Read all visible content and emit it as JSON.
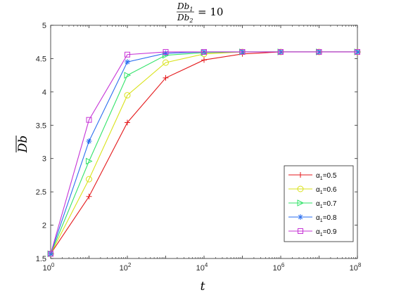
{
  "chart_data": {
    "type": "line",
    "title": {
      "numerator": "Db",
      "numerator_sub": "1",
      "denominator": "Db",
      "denominator_sub": "2",
      "equals": "= 10"
    },
    "xlabel": "t",
    "ylabel": "Db",
    "xscale": "log",
    "xlim": [
      1,
      100000000
    ],
    "ylim": [
      1.5,
      5
    ],
    "x": [
      1,
      10,
      100,
      1000,
      10000,
      100000,
      1000000,
      10000000,
      100000000
    ],
    "x_ticks": [
      {
        "base": "10",
        "exp": "0",
        "value": 1
      },
      {
        "base": "10",
        "exp": "2",
        "value": 100
      },
      {
        "base": "10",
        "exp": "4",
        "value": 10000
      },
      {
        "base": "10",
        "exp": "6",
        "value": 1000000
      },
      {
        "base": "10",
        "exp": "8",
        "value": 100000000
      }
    ],
    "y_ticks": [
      "1.5",
      "2",
      "2.5",
      "3",
      "3.5",
      "4",
      "4.5",
      "5"
    ],
    "grid": false,
    "legend_position": "bottom-right",
    "series": [
      {
        "name": "α",
        "sub": "1",
        "suffix": "=0.5",
        "color": "#e41a1c",
        "marker": "plus",
        "values": [
          1.57,
          2.43,
          3.54,
          4.21,
          4.48,
          4.57,
          4.6,
          4.6,
          4.6
        ]
      },
      {
        "name": "α",
        "sub": "1",
        "suffix": "=0.6",
        "color": "#d9e21a",
        "marker": "circle",
        "values": [
          1.57,
          2.69,
          3.95,
          4.44,
          4.57,
          4.6,
          4.6,
          4.6,
          4.6
        ]
      },
      {
        "name": "α",
        "sub": "1",
        "suffix": "=0.7",
        "color": "#33e36a",
        "marker": "triangle-right",
        "values": [
          1.57,
          2.96,
          4.25,
          4.55,
          4.59,
          4.6,
          4.6,
          4.6,
          4.6
        ]
      },
      {
        "name": "α",
        "sub": "1",
        "suffix": "=0.8",
        "color": "#2a6ef0",
        "marker": "asterisk",
        "values": [
          1.57,
          3.26,
          4.45,
          4.58,
          4.6,
          4.6,
          4.6,
          4.6,
          4.6
        ]
      },
      {
        "name": "α",
        "sub": "1",
        "suffix": "=0.9",
        "color": "#c633d6",
        "marker": "square",
        "values": [
          1.57,
          3.58,
          4.56,
          4.6,
          4.6,
          4.6,
          4.6,
          4.6,
          4.6
        ]
      }
    ]
  }
}
